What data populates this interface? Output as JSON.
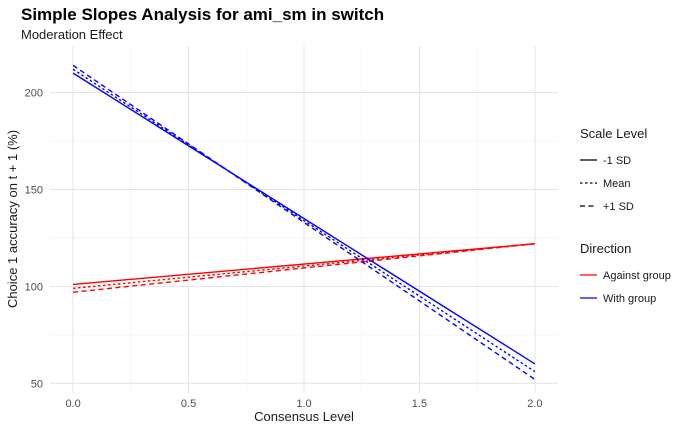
{
  "chart_data": {
    "type": "line",
    "title": "Simple Slopes Analysis for ami_sm in switch",
    "subtitle": "Moderation Effect",
    "xlabel": "Consensus Level",
    "ylabel": "Choice 1 accuracy on t + 1 (%)",
    "xlim": [
      -0.1,
      2.1
    ],
    "ylim": [
      45,
      224
    ],
    "x_ticks": [
      0.0,
      0.5,
      1.0,
      1.5,
      2.0
    ],
    "x_tick_labels": [
      "0.0",
      "0.5",
      "1.0",
      "1.5",
      "2.0"
    ],
    "y_ticks": [
      50,
      100,
      150,
      200
    ],
    "y_tick_labels": [
      "50",
      "100",
      "150",
      "200"
    ],
    "grid": true,
    "legend_position": "right",
    "legends": [
      {
        "title": "Scale Level",
        "entries": [
          {
            "label": "-1 SD",
            "linetype": "solid"
          },
          {
            "label": "Mean",
            "linetype": "dotted"
          },
          {
            "label": "+1 SD",
            "linetype": "dashed"
          }
        ]
      },
      {
        "title": "Direction",
        "entries": [
          {
            "label": "Against group",
            "color": "#ff0000"
          },
          {
            "label": "With group",
            "color": "#0000ff"
          }
        ]
      }
    ],
    "series": [
      {
        "direction": "Against group",
        "scale": "-1 SD",
        "color": "#ff0000",
        "linetype": "solid",
        "x": [
          0,
          2
        ],
        "y": [
          101,
          122
        ]
      },
      {
        "direction": "Against group",
        "scale": "Mean",
        "color": "#ff0000",
        "linetype": "dotted",
        "x": [
          0,
          2
        ],
        "y": [
          99,
          122
        ]
      },
      {
        "direction": "Against group",
        "scale": "+1 SD",
        "color": "#ff0000",
        "linetype": "dashed",
        "x": [
          0,
          2
        ],
        "y": [
          97,
          122
        ]
      },
      {
        "direction": "With group",
        "scale": "-1 SD",
        "color": "#0000ff",
        "linetype": "solid",
        "x": [
          0,
          2
        ],
        "y": [
          210,
          60
        ]
      },
      {
        "direction": "With group",
        "scale": "Mean",
        "color": "#0000ff",
        "linetype": "dotted",
        "x": [
          0,
          2
        ],
        "y": [
          212,
          56
        ]
      },
      {
        "direction": "With group",
        "scale": "+1 SD",
        "color": "#0000ff",
        "linetype": "dashed",
        "x": [
          0,
          2
        ],
        "y": [
          214,
          52
        ]
      }
    ]
  }
}
